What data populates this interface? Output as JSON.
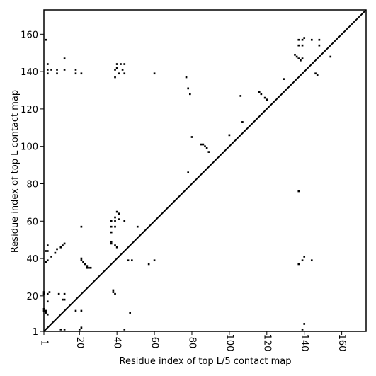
{
  "chart_data": {
    "type": "scatter",
    "xlabel": "Residue index of top L/5 contact map",
    "ylabel": "Residue index of top L contact map",
    "xlim": [
      1,
      173
    ],
    "ylim": [
      1,
      173
    ],
    "xticks": [
      1,
      20,
      40,
      60,
      80,
      100,
      120,
      140,
      160
    ],
    "yticks": [
      1,
      20,
      40,
      60,
      80,
      100,
      120,
      140,
      160
    ],
    "diagonal": true,
    "grid": false,
    "marker_color": "#000000",
    "series": [
      {
        "points_upper_L5": [
          [
            2,
            157
          ],
          [
            3,
            144
          ],
          [
            3,
            141
          ],
          [
            3,
            139
          ],
          [
            5,
            141
          ],
          [
            8,
            141
          ],
          [
            8,
            139
          ],
          [
            12,
            147
          ],
          [
            12,
            141
          ],
          [
            18,
            141
          ],
          [
            18,
            139
          ],
          [
            21,
            139
          ],
          [
            39,
            137
          ],
          [
            39,
            141
          ],
          [
            40,
            142
          ],
          [
            40,
            144
          ],
          [
            41,
            139
          ],
          [
            42,
            144
          ],
          [
            43,
            141
          ],
          [
            44,
            144
          ],
          [
            44,
            139
          ],
          [
            60,
            139
          ],
          [
            77,
            137
          ],
          [
            78,
            131
          ],
          [
            79,
            128
          ],
          [
            80,
            105
          ],
          [
            85,
            101
          ],
          [
            86,
            101
          ],
          [
            87,
            100
          ],
          [
            88,
            99
          ],
          [
            89,
            97
          ],
          [
            100,
            106
          ],
          [
            106,
            127
          ],
          [
            107,
            113
          ],
          [
            116,
            129
          ],
          [
            117,
            128
          ],
          [
            119,
            126
          ],
          [
            120,
            125
          ],
          [
            129,
            136
          ],
          [
            135,
            149
          ],
          [
            136,
            148
          ],
          [
            137,
            147
          ],
          [
            138,
            146
          ],
          [
            139,
            147
          ],
          [
            137,
            157
          ],
          [
            137,
            154
          ],
          [
            139,
            157
          ],
          [
            140,
            158
          ],
          [
            139,
            154
          ],
          [
            144,
            157
          ],
          [
            146,
            139
          ],
          [
            147,
            138
          ],
          [
            148,
            157
          ],
          [
            148,
            154
          ],
          [
            154,
            148
          ]
        ],
        "points_lower_L": [
          [
            1,
            22
          ],
          [
            1,
            21
          ],
          [
            1,
            13
          ],
          [
            1,
            12
          ],
          [
            2,
            12
          ],
          [
            2,
            11
          ],
          [
            3,
            10
          ],
          [
            3,
            17
          ],
          [
            3,
            21
          ],
          [
            4,
            22
          ],
          [
            2,
            38
          ],
          [
            3,
            39
          ],
          [
            2,
            44
          ],
          [
            3,
            44
          ],
          [
            3,
            47
          ],
          [
            5,
            41
          ],
          [
            7,
            43
          ],
          [
            8,
            45
          ],
          [
            9,
            21
          ],
          [
            10,
            46
          ],
          [
            11,
            47
          ],
          [
            12,
            48
          ],
          [
            11,
            18
          ],
          [
            12,
            18
          ],
          [
            12,
            21
          ],
          [
            10,
            2
          ],
          [
            12,
            2
          ],
          [
            18,
            12
          ],
          [
            21,
            12
          ],
          [
            20,
            2
          ],
          [
            21,
            3
          ],
          [
            21,
            57
          ],
          [
            21,
            39
          ],
          [
            21,
            40
          ],
          [
            22,
            38
          ],
          [
            23,
            37
          ],
          [
            24,
            36
          ],
          [
            24,
            35
          ],
          [
            25,
            35
          ],
          [
            26,
            35
          ],
          [
            37,
            48
          ],
          [
            37,
            49
          ],
          [
            37,
            54
          ],
          [
            37,
            57
          ],
          [
            37,
            60
          ],
          [
            38,
            23
          ],
          [
            38,
            22
          ],
          [
            39,
            21
          ],
          [
            39,
            47
          ],
          [
            39,
            57
          ],
          [
            39,
            60
          ],
          [
            39,
            62
          ],
          [
            40,
            46
          ],
          [
            40,
            65
          ],
          [
            41,
            61
          ],
          [
            41,
            64
          ],
          [
            44,
            60
          ],
          [
            44,
            2
          ],
          [
            46,
            39
          ],
          [
            47,
            11
          ],
          [
            48,
            39
          ],
          [
            51,
            57
          ],
          [
            57,
            37
          ],
          [
            60,
            39
          ],
          [
            78,
            86
          ],
          [
            137,
            76
          ],
          [
            137,
            37
          ],
          [
            139,
            2
          ],
          [
            139,
            39
          ],
          [
            140,
            5
          ],
          [
            140,
            41
          ],
          [
            144,
            39
          ]
        ]
      }
    ]
  }
}
